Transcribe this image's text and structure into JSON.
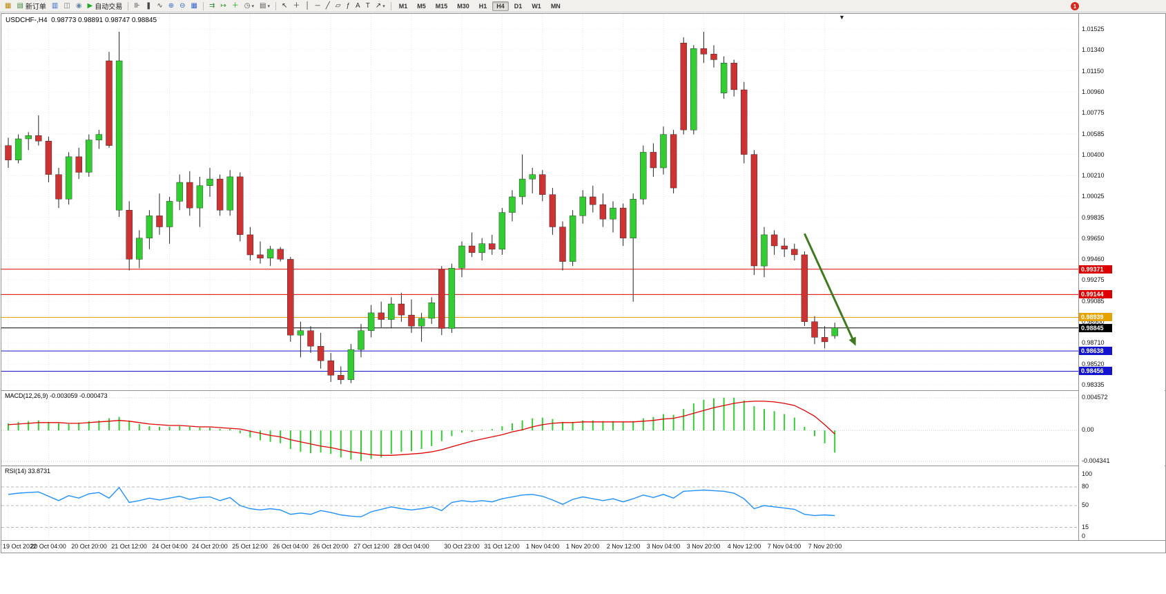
{
  "toolbar": {
    "groups": [
      {
        "items": [
          {
            "name": "new-chart-button",
            "glyph": "▦",
            "color": "#b8860b"
          },
          {
            "name": "new-order-button",
            "glyph": "▤",
            "color": "#3a8a3a",
            "label": "新订单"
          },
          {
            "name": "market-watch-button",
            "glyph": "▥",
            "color": "#3366cc"
          },
          {
            "name": "navigator-button",
            "glyph": "◫",
            "color": "#777777"
          },
          {
            "name": "metaeditor-button",
            "glyph": "◉",
            "color": "#6688aa"
          },
          {
            "name": "autotrading-button",
            "glyph": "▶",
            "color": "#22aa22",
            "label": "自动交易"
          }
        ]
      },
      {
        "items": [
          {
            "name": "bar-chart-button",
            "glyph": "⊪",
            "color": "#444444"
          },
          {
            "name": "candlestick-chart-button",
            "glyph": "❚",
            "color": "#444444"
          },
          {
            "name": "line-chart-button",
            "glyph": "∿",
            "color": "#444444"
          },
          {
            "name": "zoom-in-button",
            "glyph": "⊕",
            "color": "#3366cc"
          },
          {
            "name": "zoom-out-button",
            "glyph": "⊖",
            "color": "#3366cc"
          },
          {
            "name": "tile-windows-button",
            "glyph": "▦",
            "color": "#3366cc"
          }
        ]
      },
      {
        "items": [
          {
            "name": "auto-scroll-button",
            "glyph": "⇉",
            "color": "#2a8a2a"
          },
          {
            "name": "chart-shift-button",
            "glyph": "↦",
            "color": "#2a8a2a"
          },
          {
            "name": "indicators-button",
            "glyph": "＋",
            "color": "#00a000"
          },
          {
            "name": "periods-button",
            "glyph": "◷",
            "color": "#555555",
            "caret": true
          },
          {
            "name": "templates-button",
            "glyph": "▤",
            "color": "#555555",
            "caret": true
          }
        ]
      },
      {
        "items": [
          {
            "name": "cursor-button",
            "glyph": "↖",
            "color": "#333333"
          },
          {
            "name": "crosshair-button",
            "glyph": "＋",
            "color": "#333333"
          },
          {
            "name": "vertical-line-button",
            "glyph": "│",
            "color": "#333333"
          },
          {
            "name": "horizontal-line-button",
            "glyph": "─",
            "color": "#333333"
          },
          {
            "name": "trendline-button",
            "glyph": "╱",
            "color": "#333333"
          },
          {
            "name": "channel-button",
            "glyph": "▱",
            "color": "#333333"
          },
          {
            "name": "fibonacci-button",
            "glyph": "ƒ",
            "color": "#333333"
          },
          {
            "name": "text-button",
            "glyph": "A",
            "color": "#333333"
          },
          {
            "name": "label-button",
            "glyph": "T",
            "color": "#333333"
          },
          {
            "name": "arrows-button",
            "glyph": "↗",
            "color": "#333333",
            "caret": true
          }
        ]
      }
    ],
    "timeframes": [
      "M1",
      "M5",
      "M15",
      "M30",
      "H1",
      "H4",
      "D1",
      "W1",
      "MN"
    ],
    "active_timeframe": "H4",
    "notification_badge": "1"
  },
  "icons": {
    "shift_marker": "▼"
  },
  "chart_data": [
    {
      "type": "candlestick",
      "title": "USDCHF-,H4  0.98773 0.98891 0.98747 0.98845",
      "symbol": "USDCHF-",
      "period": "H4",
      "open": "0.98773",
      "high": "0.98891",
      "low": "0.98747",
      "close": "0.98845",
      "ylim": [
        0.98335,
        1.01525
      ],
      "colors": {
        "up": "#33cc33",
        "down": "#cc3333",
        "wick": "#222222"
      },
      "price_ticks": [
        "1.01525",
        "1.01340",
        "1.01150",
        "1.00960",
        "1.00775",
        "1.00585",
        "1.00400",
        "1.00210",
        "1.00025",
        "0.99835",
        "0.99650",
        "0.99460",
        "0.99275",
        "0.99085",
        "0.98900",
        "0.98710",
        "0.98520",
        "0.98335"
      ],
      "hlines": [
        {
          "price": 0.99371,
          "color": "#dd0000",
          "label": "0.99371",
          "style": "solid"
        },
        {
          "price": 0.99144,
          "color": "#dd0000",
          "label": "0.99144",
          "style": "solid"
        },
        {
          "price": 0.98939,
          "color": "#e8a200",
          "label": "0.98939",
          "style": "solid"
        },
        {
          "price": 0.98845,
          "color": "#000000",
          "label": "0.98845",
          "style": "solid"
        },
        {
          "price": 0.98638,
          "color": "#1414cc",
          "label": "0.98638",
          "style": "solid"
        },
        {
          "price": 0.98456,
          "color": "#1414cc",
          "label": "0.98456",
          "style": "solid"
        }
      ],
      "arrow": {
        "from_bar": 79,
        "from_price": 0.9969,
        "to_bar": 83.8,
        "to_price": 0.9874,
        "color": "#3f7a1f"
      },
      "time_labels": [
        [
          "19 Oct 2022",
          0
        ],
        [
          "20 Oct 04:00",
          4
        ],
        [
          "20 Oct 20:00",
          8
        ],
        [
          "21 Oct 12:00",
          12
        ],
        [
          "24 Oct 04:00",
          16
        ],
        [
          "24 Oct 20:00",
          20
        ],
        [
          "25 Oct 12:00",
          24
        ],
        [
          "26 Oct 04:00",
          28
        ],
        [
          "26 Oct 20:00",
          32
        ],
        [
          "27 Oct 12:00",
          36
        ],
        [
          "28 Oct 04:00",
          40
        ],
        [
          "30 Oct 23:00",
          45
        ],
        [
          "31 Oct 12:00",
          49
        ],
        [
          "1 Nov 04:00",
          53
        ],
        [
          "1 Nov 20:00",
          57
        ],
        [
          "2 Nov 12:00",
          61
        ],
        [
          "3 Nov 04:00",
          65
        ],
        [
          "3 Nov 20:00",
          69
        ],
        [
          "4 Nov 12:00",
          73
        ],
        [
          "7 Nov 04:00",
          77
        ],
        [
          "7 Nov 20:00",
          81
        ]
      ],
      "bars": [
        [
          1.0048,
          1.0055,
          1.0028,
          1.0035
        ],
        [
          1.0035,
          1.0058,
          1.0032,
          1.0054
        ],
        [
          1.0054,
          1.006,
          1.0044,
          1.0057
        ],
        [
          1.0057,
          1.0075,
          1.0048,
          1.0052
        ],
        [
          1.0052,
          1.0056,
          1.0015,
          1.0022
        ],
        [
          1.0022,
          1.0028,
          0.9992,
          1.0
        ],
        [
          1.0,
          1.0042,
          0.9995,
          1.0038
        ],
        [
          1.0038,
          1.0046,
          1.0018,
          1.0024
        ],
        [
          1.0024,
          1.0058,
          1.002,
          1.0053
        ],
        [
          1.0053,
          1.0062,
          1.0045,
          1.0058
        ],
        [
          1.0124,
          1.0132,
          1.0046,
          1.0048
        ],
        [
          0.999,
          1.015,
          0.9984,
          1.0124
        ],
        [
          0.999,
          0.9998,
          0.9936,
          0.9946
        ],
        [
          0.9946,
          0.9972,
          0.9938,
          0.9965
        ],
        [
          0.9965,
          0.999,
          0.9955,
          0.9985
        ],
        [
          0.9985,
          1.0005,
          0.9968,
          0.9975
        ],
        [
          0.9975,
          1.0002,
          0.996,
          0.9998
        ],
        [
          0.9998,
          1.0022,
          0.999,
          1.0015
        ],
        [
          1.0015,
          1.0025,
          0.9985,
          0.9992
        ],
        [
          0.9992,
          1.002,
          0.9975,
          1.0012
        ],
        [
          1.0012,
          1.0028,
          1.0002,
          1.0018
        ],
        [
          1.0018,
          1.0022,
          0.9985,
          0.999
        ],
        [
          0.999,
          1.0026,
          0.9985,
          1.002
        ],
        [
          1.002,
          1.0024,
          0.9962,
          0.9968
        ],
        [
          0.9968,
          0.9975,
          0.9945,
          0.995
        ],
        [
          0.995,
          0.9962,
          0.9942,
          0.9947
        ],
        [
          0.9947,
          0.9958,
          0.994,
          0.9955
        ],
        [
          0.9955,
          0.9957,
          0.9944,
          0.9946
        ],
        [
          0.9946,
          0.9948,
          0.9872,
          0.9878
        ],
        [
          0.9878,
          0.989,
          0.9858,
          0.9882
        ],
        [
          0.9882,
          0.9886,
          0.9862,
          0.9868
        ],
        [
          0.9868,
          0.988,
          0.9848,
          0.9855
        ],
        [
          0.9855,
          0.9862,
          0.9836,
          0.9842
        ],
        [
          0.9842,
          0.985,
          0.9834,
          0.9838
        ],
        [
          0.9838,
          0.987,
          0.9835,
          0.9865
        ],
        [
          0.9865,
          0.9888,
          0.9858,
          0.9882
        ],
        [
          0.9882,
          0.9905,
          0.9876,
          0.9898
        ],
        [
          0.9898,
          0.9908,
          0.9885,
          0.9892
        ],
        [
          0.9892,
          0.9912,
          0.9884,
          0.9906
        ],
        [
          0.9906,
          0.9916,
          0.989,
          0.9896
        ],
        [
          0.9896,
          0.991,
          0.988,
          0.9886
        ],
        [
          0.9886,
          0.9898,
          0.9872,
          0.9893
        ],
        [
          0.9893,
          0.9912,
          0.9888,
          0.9907
        ],
        [
          0.9937,
          0.994,
          0.9878,
          0.9884
        ],
        [
          0.9884,
          0.9942,
          0.988,
          0.9938
        ],
        [
          0.9938,
          0.9962,
          0.993,
          0.9958
        ],
        [
          0.9958,
          0.997,
          0.9948,
          0.9952
        ],
        [
          0.9952,
          0.9965,
          0.9945,
          0.996
        ],
        [
          0.996,
          0.9968,
          0.995,
          0.9955
        ],
        [
          0.9955,
          0.9992,
          0.995,
          0.9988
        ],
        [
          0.9988,
          1.0008,
          0.998,
          1.0002
        ],
        [
          1.0002,
          1.004,
          0.9995,
          1.0018
        ],
        [
          1.0018,
          1.0028,
          1.0005,
          1.0022
        ],
        [
          1.0022,
          1.0026,
          0.9998,
          1.0004
        ],
        [
          1.0004,
          1.001,
          0.9968,
          0.9975
        ],
        [
          0.9975,
          0.998,
          0.9936,
          0.9944
        ],
        [
          0.9944,
          0.999,
          0.994,
          0.9985
        ],
        [
          0.9985,
          1.0008,
          0.9978,
          1.0002
        ],
        [
          1.0002,
          1.0012,
          0.9988,
          0.9995
        ],
        [
          0.9995,
          1.0005,
          0.9975,
          0.9982
        ],
        [
          0.9982,
          0.9998,
          0.997,
          0.9992
        ],
        [
          0.9992,
          0.9996,
          0.9958,
          0.9965
        ],
        [
          0.9965,
          1.0005,
          0.9908,
          1.0
        ],
        [
          1.0,
          1.0048,
          0.9995,
          1.0042
        ],
        [
          1.0042,
          1.005,
          1.002,
          1.0028
        ],
        [
          1.0028,
          1.0065,
          1.0022,
          1.0058
        ],
        [
          1.0058,
          1.0062,
          1.0005,
          1.001
        ],
        [
          1.014,
          1.0145,
          1.0058,
          1.0062
        ],
        [
          1.0062,
          1.0138,
          1.0058,
          1.0135
        ],
        [
          1.0135,
          1.015,
          1.0122,
          1.013
        ],
        [
          1.013,
          1.0138,
          1.0118,
          1.0125
        ],
        [
          1.0095,
          1.0128,
          1.009,
          1.0122
        ],
        [
          1.0122,
          1.0125,
          1.0092,
          1.0098
        ],
        [
          1.0098,
          1.0105,
          1.0032,
          1.004
        ],
        [
          1.004,
          1.0044,
          0.9932,
          0.994
        ],
        [
          0.994,
          0.9975,
          0.993,
          0.9968
        ],
        [
          0.9968,
          0.9972,
          0.995,
          0.9958
        ],
        [
          0.9958,
          0.9965,
          0.9948,
          0.9955
        ],
        [
          0.9955,
          0.996,
          0.9945,
          0.995
        ],
        [
          0.995,
          0.9953,
          0.9886,
          0.989
        ],
        [
          0.989,
          0.9895,
          0.987,
          0.9876
        ],
        [
          0.9876,
          0.9886,
          0.9866,
          0.9872
        ],
        [
          0.98773,
          0.98891,
          0.98747,
          0.98845
        ]
      ]
    },
    {
      "type": "bar",
      "name": "MACD",
      "label": "MACD(12,26,9) -0.003059 -0.000473",
      "value_macd": "-0.003059",
      "value_signal": "-0.000473",
      "ymax": 0.004572,
      "ymin": -0.004341,
      "scale_ticks": [
        "0.004572",
        "0.00",
        "-0.004341"
      ],
      "histogram_color": "#33cc33",
      "signal_color": "#e00000",
      "values": [
        0.001,
        0.0012,
        0.0013,
        0.0014,
        0.0012,
        0.001,
        0.0009,
        0.0011,
        0.0013,
        0.0014,
        0.0017,
        0.0019,
        0.0013,
        0.0009,
        0.0006,
        0.0005,
        0.0005,
        0.0006,
        0.0005,
        0.0004,
        0.0004,
        0.0002,
        0.0002,
        -0.0004,
        -0.001,
        -0.0014,
        -0.0016,
        -0.0018,
        -0.0026,
        -0.003,
        -0.0032,
        -0.0031,
        -0.0033,
        -0.0038,
        -0.0041,
        -0.0043,
        -0.004,
        -0.0038,
        -0.0033,
        -0.003,
        -0.0029,
        -0.0026,
        -0.0022,
        -0.0015,
        -0.0008,
        -0.0003,
        -0.0002,
        0.0001,
        0.0002,
        0.0006,
        0.001,
        0.0014,
        0.0017,
        0.0018,
        0.0016,
        0.0012,
        0.0012,
        0.0014,
        0.0014,
        0.0013,
        0.0013,
        0.0012,
        0.0013,
        0.0017,
        0.0019,
        0.0023,
        0.0022,
        0.003,
        0.0038,
        0.0043,
        0.0045,
        0.0046,
        0.0046,
        0.0042,
        0.0034,
        0.003,
        0.0027,
        0.0023,
        0.0018,
        0.0005,
        -0.0008,
        -0.0018,
        -0.0031
      ],
      "signal": [
        0.0008,
        0.0009,
        0.001,
        0.0011,
        0.0011,
        0.0011,
        0.001,
        0.001,
        0.0011,
        0.0012,
        0.0013,
        0.0014,
        0.0013,
        0.0011,
        0.0009,
        0.0008,
        0.0007,
        0.0007,
        0.0006,
        0.0005,
        0.0005,
        0.0004,
        0.0003,
        0.0002,
        -0.0001,
        -0.0004,
        -0.0007,
        -0.0009,
        -0.0013,
        -0.0016,
        -0.0019,
        -0.0022,
        -0.0024,
        -0.0027,
        -0.003,
        -0.0032,
        -0.0034,
        -0.0035,
        -0.0035,
        -0.0034,
        -0.0033,
        -0.0032,
        -0.003,
        -0.0027,
        -0.0023,
        -0.0019,
        -0.0015,
        -0.0012,
        -0.0009,
        -0.0006,
        -0.0002,
        0.0001,
        0.0005,
        0.0008,
        0.001,
        0.0011,
        0.0011,
        0.0012,
        0.0012,
        0.0012,
        0.0012,
        0.0012,
        0.0012,
        0.0013,
        0.0014,
        0.0016,
        0.0017,
        0.002,
        0.0024,
        0.0028,
        0.0032,
        0.0035,
        0.0038,
        0.004,
        0.0041,
        0.0041,
        0.004,
        0.0038,
        0.0035,
        0.0028,
        0.002,
        0.0008,
        -0.0005
      ]
    },
    {
      "type": "line",
      "name": "RSI",
      "label": "RSI(14) 33.8731",
      "value": "33.8731",
      "ylim": [
        0,
        100
      ],
      "levels": [
        80,
        50,
        15
      ],
      "scale_ticks": [
        "100",
        "80",
        "50",
        "15",
        "0"
      ],
      "color": "#1E90FF",
      "values": [
        68,
        70,
        71,
        72,
        65,
        58,
        66,
        62,
        69,
        71,
        62,
        79,
        55,
        58,
        62,
        59,
        62,
        65,
        60,
        63,
        64,
        58,
        63,
        50,
        45,
        43,
        45,
        43,
        36,
        38,
        36,
        42,
        39,
        35,
        33,
        32,
        40,
        44,
        48,
        45,
        43,
        45,
        48,
        42,
        55,
        58,
        56,
        58,
        56,
        61,
        64,
        67,
        68,
        65,
        59,
        52,
        60,
        64,
        61,
        58,
        61,
        56,
        61,
        67,
        63,
        68,
        62,
        73,
        74,
        75,
        74,
        73,
        70,
        61,
        45,
        50,
        48,
        46,
        44,
        36,
        34,
        35,
        33.87
      ]
    }
  ]
}
